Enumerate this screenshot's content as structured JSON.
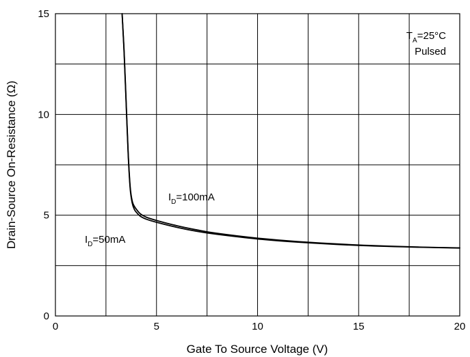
{
  "chart_data": {
    "type": "line",
    "title": "",
    "xlabel": "Gate To Source Voltage (V)",
    "ylabel": "Drain-Source On-Resistance (Ω)",
    "xlim": [
      0,
      20
    ],
    "ylim": [
      0,
      15
    ],
    "x_ticks": [
      0,
      5,
      10,
      15,
      20
    ],
    "y_ticks": [
      0,
      5,
      10,
      15
    ],
    "grid": true,
    "series": [
      {
        "name": "ID=50mA",
        "x": [
          3.3,
          3.4,
          3.5,
          3.6,
          3.7,
          3.8,
          3.9,
          4.0,
          4.2,
          4.5,
          5.0,
          6.0,
          7.0,
          8.0,
          10.0,
          12.0,
          15.0,
          18.0,
          20.0
        ],
        "y": [
          15.0,
          13.0,
          10.5,
          8.0,
          6.3,
          5.6,
          5.3,
          5.15,
          4.95,
          4.8,
          4.65,
          4.4,
          4.2,
          4.05,
          3.82,
          3.66,
          3.5,
          3.41,
          3.37
        ]
      },
      {
        "name": "ID=100mA",
        "x": [
          3.3,
          3.4,
          3.5,
          3.6,
          3.7,
          3.8,
          3.9,
          4.0,
          4.2,
          4.5,
          5.0,
          6.0,
          7.0,
          8.0,
          10.0,
          12.0,
          15.0,
          18.0,
          20.0
        ],
        "y": [
          15.0,
          13.1,
          10.6,
          8.1,
          6.4,
          5.7,
          5.45,
          5.3,
          5.07,
          4.9,
          4.74,
          4.48,
          4.27,
          4.1,
          3.86,
          3.69,
          3.52,
          3.42,
          3.38
        ]
      }
    ],
    "annotations": {
      "id100": {
        "pre": "I",
        "sub": "D",
        "post": "=100mA",
        "x": 5.6,
        "y": 5.75
      },
      "id50": {
        "pre": "I",
        "sub": "D",
        "post": "=50mA",
        "x": 1.4,
        "y": 3.55
      },
      "ta_line1": {
        "pre": "T",
        "sub": "A",
        "post": "=25°C"
      },
      "ta_line2": "Pulsed"
    }
  }
}
